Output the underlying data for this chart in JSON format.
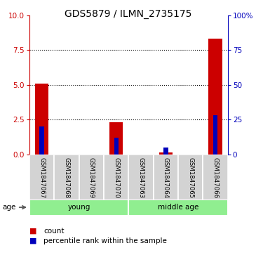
{
  "title": "GDS5879 / ILMN_2735175",
  "samples": [
    "GSM1847067",
    "GSM1847068",
    "GSM1847069",
    "GSM1847070",
    "GSM1847063",
    "GSM1847064",
    "GSM1847065",
    "GSM1847066"
  ],
  "count_values": [
    5.1,
    0.0,
    0.0,
    2.3,
    0.0,
    0.15,
    0.0,
    8.3
  ],
  "percentile_values": [
    20.0,
    0.0,
    0.0,
    12.0,
    0.0,
    5.0,
    0.0,
    28.0
  ],
  "ylim_left": [
    0,
    10
  ],
  "ylim_right": [
    0,
    100
  ],
  "yticks_left": [
    0,
    2.5,
    5.0,
    7.5,
    10
  ],
  "yticks_right": [
    0,
    25,
    50,
    75,
    100
  ],
  "ytick_labels_right": [
    "0",
    "25",
    "50",
    "75",
    "100%"
  ],
  "groups": [
    {
      "label": "young",
      "start": 0,
      "end": 3
    },
    {
      "label": "middle age",
      "start": 4,
      "end": 7
    }
  ],
  "age_label": "age",
  "bar_width": 0.55,
  "blue_bar_width": 0.18,
  "red_color": "#CC0000",
  "blue_color": "#0000BB",
  "green_light": "#90EE90",
  "green_dark": "#3CB371",
  "sample_bg_color": "#d3d3d3",
  "legend_count": "count",
  "legend_pct": "percentile rank within the sample",
  "title_fontsize": 10,
  "axis_fontsize": 7.5,
  "tick_fontsize": 7.5
}
